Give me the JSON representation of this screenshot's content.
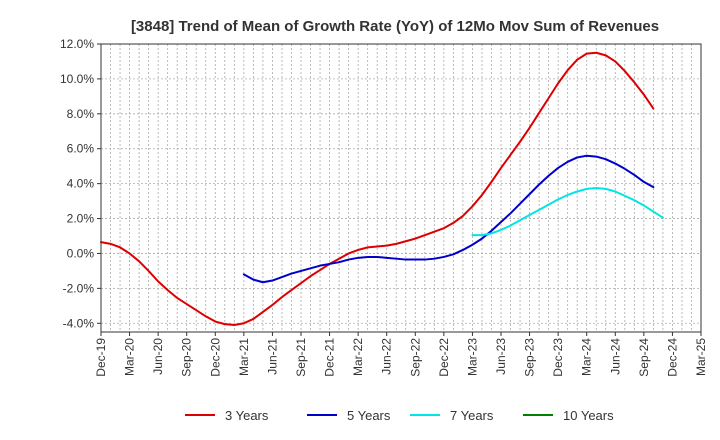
{
  "chart_data": {
    "type": "line",
    "title": "[3848]  Trend of Mean of Growth Rate (YoY) of 12Mo Mov Sum of Revenues",
    "xlabel": "",
    "ylabel": "",
    "ylim": [
      -4.5,
      12.0
    ],
    "y_ticks": [
      12.0,
      10.0,
      8.0,
      6.0,
      4.0,
      2.0,
      0.0,
      -2.0,
      -4.0
    ],
    "y_tick_labels": [
      "12.0%",
      "10.0%",
      "8.0%",
      "6.0%",
      "4.0%",
      "2.0%",
      "0.0%",
      "-2.0%",
      "-4.0%"
    ],
    "x_tick_labels": [
      "Dec-19",
      "Mar-20",
      "Jun-20",
      "Sep-20",
      "Dec-20",
      "Mar-21",
      "Jun-21",
      "Sep-21",
      "Dec-21",
      "Mar-22",
      "Jun-22",
      "Sep-22",
      "Dec-22",
      "Mar-23",
      "Jun-23",
      "Sep-23",
      "Dec-23",
      "Mar-24",
      "Jun-24",
      "Sep-24",
      "Dec-24",
      "Mar-25"
    ],
    "grid": true,
    "legend_position": "bottom",
    "series": [
      {
        "name": "3 Years",
        "color": "#dd0000",
        "start_month": 0,
        "values": [
          0.65,
          0.55,
          0.35,
          0.0,
          -0.45,
          -1.0,
          -1.6,
          -2.1,
          -2.55,
          -2.9,
          -3.25,
          -3.6,
          -3.9,
          -4.05,
          -4.1,
          -4.0,
          -3.75,
          -3.35,
          -2.95,
          -2.5,
          -2.1,
          -1.7,
          -1.3,
          -0.95,
          -0.6,
          -0.3,
          0.0,
          0.2,
          0.35,
          0.4,
          0.45,
          0.55,
          0.7,
          0.85,
          1.05,
          1.25,
          1.45,
          1.75,
          2.15,
          2.7,
          3.35,
          4.1,
          4.9,
          5.65,
          6.4,
          7.2,
          8.05,
          8.9,
          9.75,
          10.5,
          11.1,
          11.45,
          11.5,
          11.35,
          11.0,
          10.45,
          9.8,
          9.1,
          8.3
        ]
      },
      {
        "name": "5 Years",
        "color": "#0000cc",
        "start_month": 15,
        "values": [
          -1.2,
          -1.5,
          -1.65,
          -1.55,
          -1.35,
          -1.15,
          -1.0,
          -0.85,
          -0.7,
          -0.6,
          -0.5,
          -0.35,
          -0.25,
          -0.2,
          -0.2,
          -0.25,
          -0.3,
          -0.35,
          -0.35,
          -0.35,
          -0.3,
          -0.2,
          -0.05,
          0.2,
          0.5,
          0.85,
          1.3,
          1.8,
          2.3,
          2.85,
          3.4,
          3.95,
          4.45,
          4.9,
          5.25,
          5.5,
          5.6,
          5.55,
          5.4,
          5.15,
          4.85,
          4.5,
          4.1,
          3.8
        ]
      },
      {
        "name": "7 Years",
        "color": "#00e5e5",
        "start_month": 39,
        "values": [
          1.05,
          1.05,
          1.15,
          1.35,
          1.6,
          1.9,
          2.2,
          2.5,
          2.8,
          3.1,
          3.35,
          3.55,
          3.7,
          3.75,
          3.7,
          3.55,
          3.3,
          3.05,
          2.75,
          2.4,
          2.05
        ]
      },
      {
        "name": "10 Years",
        "color": "#008000",
        "start_month": 0,
        "values": []
      }
    ]
  }
}
